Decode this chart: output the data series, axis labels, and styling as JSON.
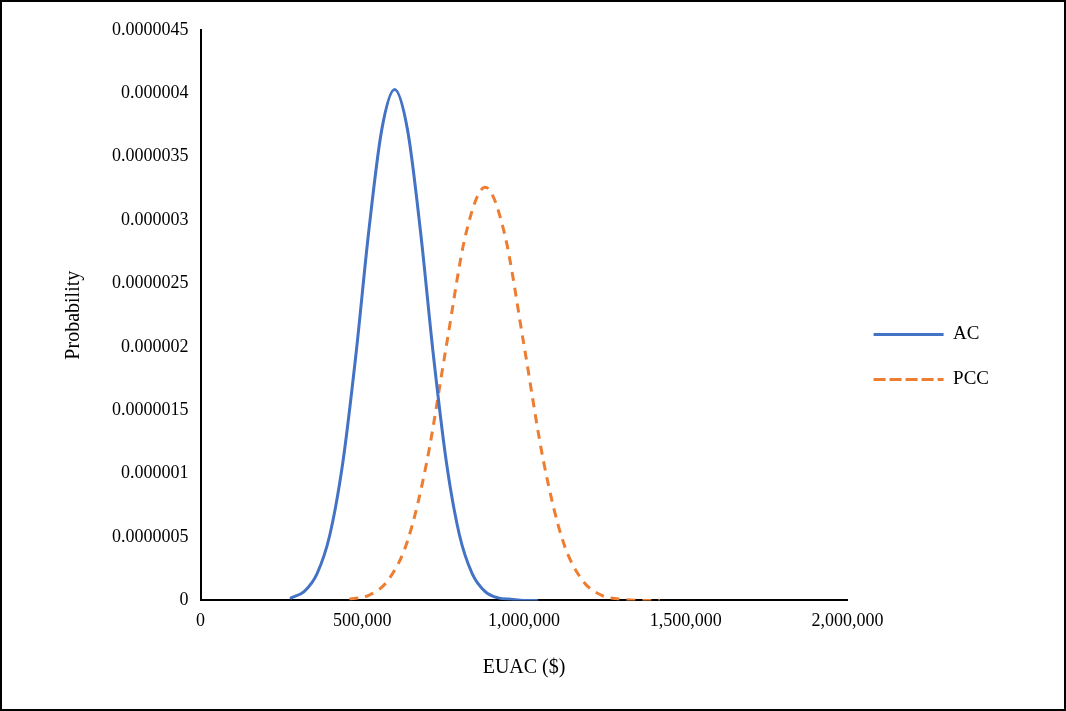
{
  "chart_data": {
    "type": "line",
    "xlabel": "EUAC ($)",
    "ylabel": "Probability",
    "xlim": [
      0,
      2000000
    ],
    "xticks": [
      {
        "value": 0,
        "label": "0"
      },
      {
        "value": 500000,
        "label": "500,000"
      },
      {
        "value": 1000000,
        "label": "1,000,000"
      },
      {
        "value": 1500000,
        "label": "1,500,000"
      },
      {
        "value": 2000000,
        "label": "2,000,000"
      }
    ],
    "ylim": [
      0,
      4.5e-06
    ],
    "yticks": [
      {
        "value": 0,
        "label": "0"
      },
      {
        "value": 5e-07,
        "label": "0.0000005"
      },
      {
        "value": 1e-06,
        "label": "0.000001"
      },
      {
        "value": 1.5e-06,
        "label": "0.0000015"
      },
      {
        "value": 2e-06,
        "label": "0.000002"
      },
      {
        "value": 2.5e-06,
        "label": "0.0000025"
      },
      {
        "value": 3e-06,
        "label": "0.000003"
      },
      {
        "value": 3.5e-06,
        "label": "0.0000035"
      },
      {
        "value": 4e-06,
        "label": "0.000004"
      },
      {
        "value": 4.5e-06,
        "label": "0.0000045"
      }
    ],
    "grid": false,
    "legend": "right",
    "marker": "none",
    "series": [
      {
        "name": "AC",
        "color": "#4472c4",
        "line_style": "solid",
        "x": [
          280000,
          320000,
          360000,
          400000,
          440000,
          480000,
          520000,
          560000,
          600000,
          640000,
          680000,
          720000,
          760000,
          800000,
          840000,
          880000,
          920000,
          960000,
          1000000,
          1040000
        ],
        "values": [
          2e-08,
          7e-08,
          2.1e-07,
          5.2e-07,
          1.09e-06,
          1.93e-06,
          2.91e-06,
          3.71e-06,
          4.03e-06,
          3.71e-06,
          2.91e-06,
          1.93e-06,
          1.09e-06,
          5.2e-07,
          2.1e-07,
          7e-08,
          2e-08,
          1e-08,
          0,
          0
        ]
      },
      {
        "name": "PCC",
        "color": "#ed7d31",
        "line_style": "dashed",
        "x": [
          460000,
          520000,
          580000,
          640000,
          700000,
          760000,
          820000,
          880000,
          940000,
          1000000,
          1060000,
          1120000,
          1180000,
          1240000,
          1300000,
          1360000,
          1420000
        ],
        "values": [
          1e-08,
          4e-08,
          1.6e-07,
          4.7e-07,
          1.1e-06,
          2.01e-06,
          2.89e-06,
          3.26e-06,
          2.89e-06,
          2.01e-06,
          1.1e-06,
          4.7e-07,
          1.6e-07,
          4e-08,
          1e-08,
          0,
          0
        ]
      }
    ]
  }
}
